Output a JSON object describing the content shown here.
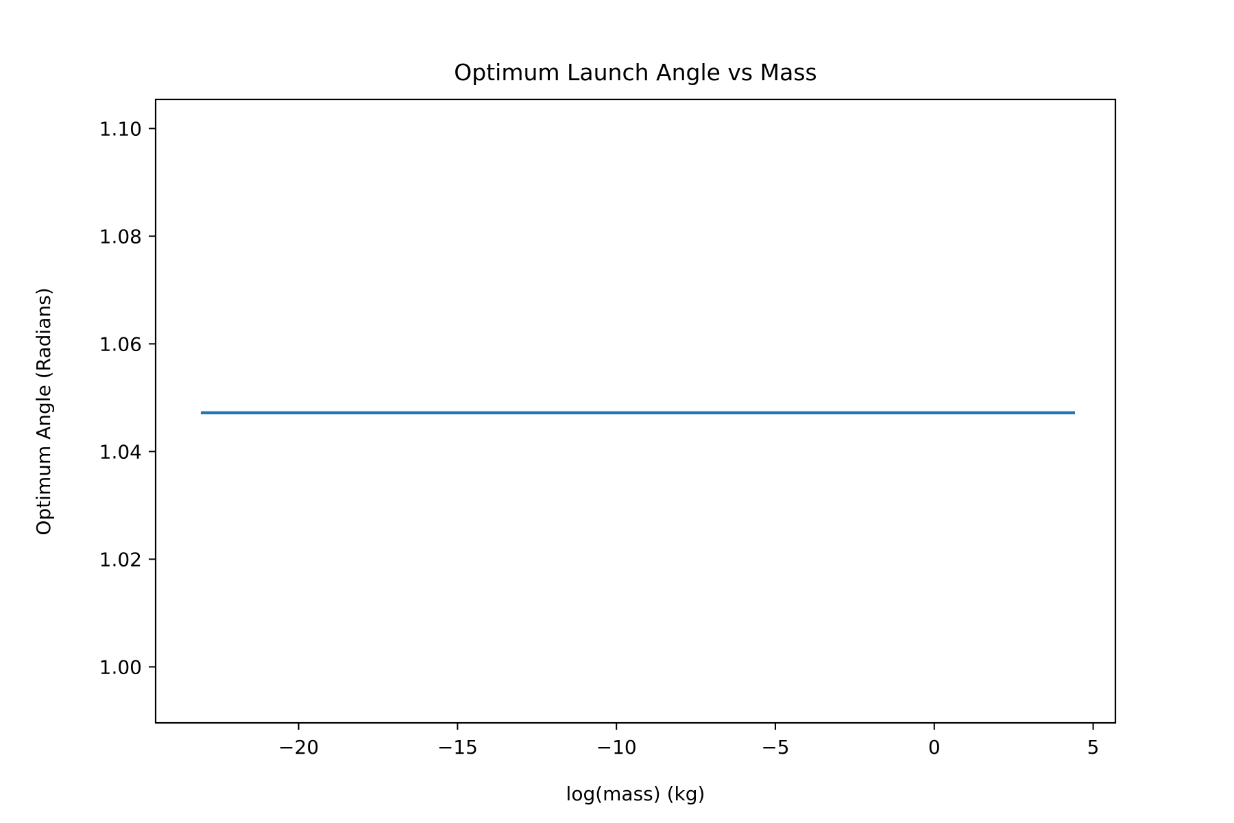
{
  "chart_data": {
    "type": "line",
    "title": "Optimum Launch Angle vs Mass",
    "xlabel": "log(mass) (kg)",
    "ylabel": "Optimum Angle (Radians)",
    "xlim": [
      -24.5,
      5.7
    ],
    "ylim": [
      0.9896,
      1.1054
    ],
    "x_ticks": [
      -20,
      -15,
      -10,
      -5,
      0,
      5
    ],
    "x_tick_labels": [
      "−20",
      "−15",
      "−10",
      "−5",
      "0",
      "5"
    ],
    "y_ticks": [
      1.0,
      1.02,
      1.04,
      1.06,
      1.08,
      1.1
    ],
    "y_tick_labels": [
      "1.00",
      "1.02",
      "1.04",
      "1.06",
      "1.08",
      "1.10"
    ],
    "grid": false,
    "legend": "none",
    "series": [
      {
        "color": "#1f77b4",
        "x": [
          -23.03,
          4.38
        ],
        "y": [
          1.0472,
          1.0472
        ]
      }
    ]
  }
}
